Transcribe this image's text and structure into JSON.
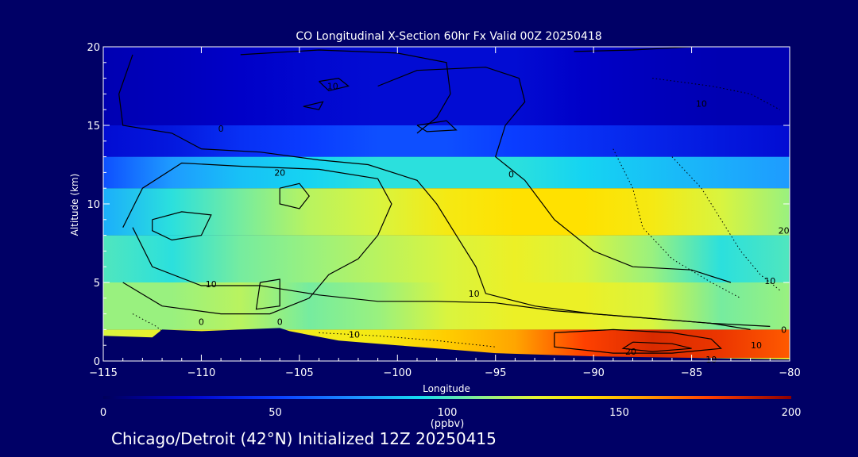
{
  "chart_data": {
    "type": "heatmap",
    "title": "CO Longitudinal X-Section 60hr  Fx Valid 00Z 20250418",
    "xlabel": "Longitude",
    "ylabel": "Altitude (km)",
    "xlim": [
      -115,
      -80
    ],
    "ylim": [
      0,
      20
    ],
    "x_ticks": [
      -115,
      -110,
      -105,
      -100,
      -95,
      -90,
      -85,
      -80
    ],
    "x_tick_labels": [
      "−115",
      "−110",
      "−105",
      "−100",
      "−95",
      "−90",
      "−85",
      "−80"
    ],
    "y_ticks": [
      0,
      5,
      10,
      15,
      20
    ],
    "y_tick_labels": [
      "0",
      "5",
      "10",
      "15",
      "20"
    ],
    "colorbar": {
      "min": 0,
      "max": 200,
      "ticks": [
        0,
        50,
        100,
        150,
        200
      ],
      "tick_labels": [
        "0",
        "50",
        "100",
        "150",
        "200"
      ],
      "unit": "(ppbv)"
    },
    "terrain": [
      [
        -115,
        1.6
      ],
      [
        -112.5,
        1.5
      ],
      [
        -112,
        2.0
      ],
      [
        -110,
        1.9
      ],
      [
        -108,
        2.0
      ],
      [
        -106,
        2.1
      ],
      [
        -105.5,
        1.9
      ],
      [
        -103,
        1.3
      ],
      [
        -100,
        1.0
      ],
      [
        -97,
        0.7
      ],
      [
        -95,
        0.5
      ],
      [
        -90,
        0.3
      ],
      [
        -85,
        0.2
      ],
      [
        -80,
        0.1
      ]
    ],
    "co_field": [
      {
        "altitude_km": [
          0.2,
          2
        ],
        "values_ppbv": [
          120,
          125,
          125,
          128,
          130,
          140,
          150,
          170,
          180,
          175,
          165
        ]
      },
      {
        "altitude_km": [
          2,
          5
        ],
        "values_ppbv": [
          110,
          110,
          115,
          105,
          110,
          120,
          125,
          125,
          120,
          105,
          110
        ]
      },
      {
        "altitude_km": [
          5,
          8
        ],
        "values_ppbv": [
          100,
          95,
          105,
          110,
          115,
          120,
          125,
          120,
          110,
          95,
          100
        ]
      },
      {
        "altitude_km": [
          8,
          11
        ],
        "values_ppbv": [
          80,
          95,
          105,
          115,
          120,
          130,
          135,
          135,
          130,
          120,
          110
        ]
      },
      {
        "altitude_km": [
          11,
          13
        ],
        "values_ppbv": [
          55,
          75,
          85,
          90,
          95,
          95,
          95,
          90,
          85,
          80,
          75
        ]
      },
      {
        "altitude_km": [
          13,
          15
        ],
        "values_ppbv": [
          30,
          35,
          45,
          50,
          55,
          55,
          50,
          45,
          40,
          35,
          30
        ]
      },
      {
        "altitude_km": [
          15,
          20
        ],
        "values_ppbv": [
          20,
          22,
          25,
          28,
          30,
          30,
          30,
          25,
          22,
          20,
          20
        ]
      }
    ],
    "co_field_longitudes": [
      -115,
      -111.5,
      -108,
      -104.5,
      -101,
      -97.5,
      -94,
      -90.5,
      -87,
      -83.5,
      -80
    ],
    "contour_labels": [
      {
        "text": "10",
        "lon": -103.3,
        "alt": 17.5
      },
      {
        "text": "10",
        "lon": -84.5,
        "alt": 16.4
      },
      {
        "text": "0",
        "lon": -109,
        "alt": 14.8
      },
      {
        "text": "20",
        "lon": -106,
        "alt": 12.0
      },
      {
        "text": "0",
        "lon": -94.2,
        "alt": 11.9
      },
      {
        "text": "20",
        "lon": -80.3,
        "alt": 8.3
      },
      {
        "text": "10",
        "lon": -109.5,
        "alt": 4.9
      },
      {
        "text": "10",
        "lon": -81,
        "alt": 5.1
      },
      {
        "text": "10",
        "lon": -96.1,
        "alt": 4.3
      },
      {
        "text": "0",
        "lon": -110,
        "alt": 2.5
      },
      {
        "text": "0",
        "lon": -106,
        "alt": 2.5
      },
      {
        "text": "0",
        "lon": -80.3,
        "alt": 2.0
      },
      {
        "text": "10",
        "lon": -102.2,
        "alt": 1.7
      },
      {
        "text": "10",
        "lon": -81.7,
        "alt": 1.0
      },
      {
        "text": "20",
        "lon": -88.1,
        "alt": 0.6
      },
      {
        "text": "10",
        "lon": -84,
        "alt": 0.1
      }
    ]
  },
  "caption": "Chicago/Detroit (42°N) Initialized 12Z 20250415"
}
